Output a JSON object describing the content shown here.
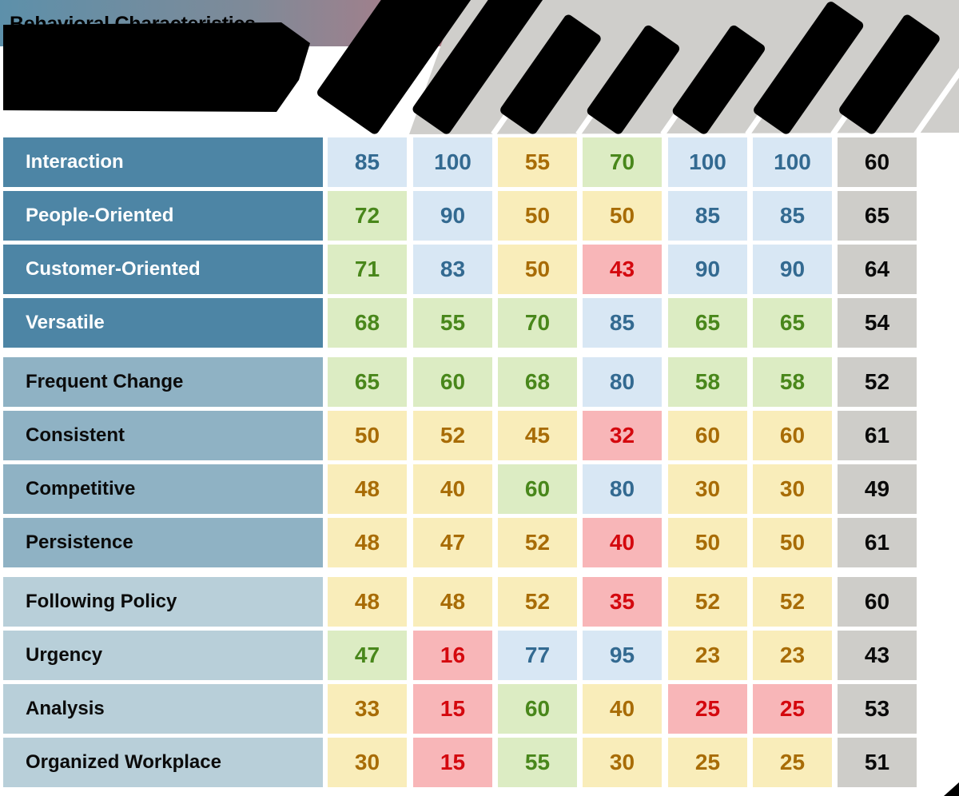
{
  "title": {
    "line1": "Behavioral Characteristics",
    "line2": "Behavioral Characteristics"
  },
  "header": {
    "column_labels_obscured": true,
    "column_labels": [
      "",
      "",
      "",
      "",
      "",
      "",
      ""
    ]
  },
  "colors": {
    "gradient_left": "#5d90aa",
    "gradient_right": "#b27a85",
    "header_gray": "#cfcecb",
    "label_dark": "#4d85a5",
    "label_mid": "#8fb2c4",
    "label_light": "#b8cfd9",
    "cell_blue_bg": "#d8e7f4",
    "cell_blue_fg": "#336a91",
    "cell_green_bg": "#dcecc3",
    "cell_green_fg": "#49871b",
    "cell_yellow_bg": "#f9edba",
    "cell_yellow_fg": "#a86c06",
    "cell_red_bg": "#f8b6b8",
    "cell_red_fg": "#d4080e",
    "cell_gray_bg": "#cecdc9",
    "cell_gray_fg": "#0a0a0a"
  },
  "table": {
    "rows": [
      {
        "label": "Interaction",
        "group": "dark",
        "cells": [
          {
            "v": "85",
            "c": "blue"
          },
          {
            "v": "100",
            "c": "blue"
          },
          {
            "v": "55",
            "c": "yellow"
          },
          {
            "v": "70",
            "c": "green"
          },
          {
            "v": "100",
            "c": "blue"
          },
          {
            "v": "100",
            "c": "blue"
          },
          {
            "v": "60",
            "c": "gray"
          }
        ]
      },
      {
        "label": "People-Oriented",
        "group": "dark",
        "cells": [
          {
            "v": "72",
            "c": "green"
          },
          {
            "v": "90",
            "c": "blue"
          },
          {
            "v": "50",
            "c": "yellow"
          },
          {
            "v": "50",
            "c": "yellow"
          },
          {
            "v": "85",
            "c": "blue"
          },
          {
            "v": "85",
            "c": "blue"
          },
          {
            "v": "65",
            "c": "gray"
          }
        ]
      },
      {
        "label": "Customer-Oriented",
        "group": "dark",
        "cells": [
          {
            "v": "71",
            "c": "green"
          },
          {
            "v": "83",
            "c": "blue"
          },
          {
            "v": "50",
            "c": "yellow"
          },
          {
            "v": "43",
            "c": "red"
          },
          {
            "v": "90",
            "c": "blue"
          },
          {
            "v": "90",
            "c": "blue"
          },
          {
            "v": "64",
            "c": "gray"
          }
        ]
      },
      {
        "label": "Versatile",
        "group": "dark",
        "cells": [
          {
            "v": "68",
            "c": "green"
          },
          {
            "v": "55",
            "c": "green"
          },
          {
            "v": "70",
            "c": "green"
          },
          {
            "v": "85",
            "c": "blue"
          },
          {
            "v": "65",
            "c": "green"
          },
          {
            "v": "65",
            "c": "green"
          },
          {
            "v": "54",
            "c": "gray"
          }
        ]
      },
      {
        "label": "Frequent Change",
        "group": "mid",
        "cells": [
          {
            "v": "65",
            "c": "green"
          },
          {
            "v": "60",
            "c": "green"
          },
          {
            "v": "68",
            "c": "green"
          },
          {
            "v": "80",
            "c": "blue"
          },
          {
            "v": "58",
            "c": "green"
          },
          {
            "v": "58",
            "c": "green"
          },
          {
            "v": "52",
            "c": "gray"
          }
        ]
      },
      {
        "label": "Consistent",
        "group": "mid",
        "cells": [
          {
            "v": "50",
            "c": "yellow"
          },
          {
            "v": "52",
            "c": "yellow"
          },
          {
            "v": "45",
            "c": "yellow"
          },
          {
            "v": "32",
            "c": "red"
          },
          {
            "v": "60",
            "c": "yellow"
          },
          {
            "v": "60",
            "c": "yellow"
          },
          {
            "v": "61",
            "c": "gray"
          }
        ]
      },
      {
        "label": "Competitive",
        "group": "mid",
        "cells": [
          {
            "v": "48",
            "c": "yellow"
          },
          {
            "v": "40",
            "c": "yellow"
          },
          {
            "v": "60",
            "c": "green"
          },
          {
            "v": "80",
            "c": "blue"
          },
          {
            "v": "30",
            "c": "yellow"
          },
          {
            "v": "30",
            "c": "yellow"
          },
          {
            "v": "49",
            "c": "gray"
          }
        ]
      },
      {
        "label": "Persistence",
        "group": "mid",
        "cells": [
          {
            "v": "48",
            "c": "yellow"
          },
          {
            "v": "47",
            "c": "yellow"
          },
          {
            "v": "52",
            "c": "yellow"
          },
          {
            "v": "40",
            "c": "red"
          },
          {
            "v": "50",
            "c": "yellow"
          },
          {
            "v": "50",
            "c": "yellow"
          },
          {
            "v": "61",
            "c": "gray"
          }
        ]
      },
      {
        "label": "Following Policy",
        "group": "light",
        "cells": [
          {
            "v": "48",
            "c": "yellow"
          },
          {
            "v": "48",
            "c": "yellow"
          },
          {
            "v": "52",
            "c": "yellow"
          },
          {
            "v": "35",
            "c": "red"
          },
          {
            "v": "52",
            "c": "yellow"
          },
          {
            "v": "52",
            "c": "yellow"
          },
          {
            "v": "60",
            "c": "gray"
          }
        ]
      },
      {
        "label": "Urgency",
        "group": "light",
        "cells": [
          {
            "v": "47",
            "c": "green"
          },
          {
            "v": "16",
            "c": "red"
          },
          {
            "v": "77",
            "c": "blue"
          },
          {
            "v": "95",
            "c": "blue"
          },
          {
            "v": "23",
            "c": "yellow"
          },
          {
            "v": "23",
            "c": "yellow"
          },
          {
            "v": "43",
            "c": "gray"
          }
        ]
      },
      {
        "label": "Analysis",
        "group": "light",
        "cells": [
          {
            "v": "33",
            "c": "yellow"
          },
          {
            "v": "15",
            "c": "red"
          },
          {
            "v": "60",
            "c": "green"
          },
          {
            "v": "40",
            "c": "yellow"
          },
          {
            "v": "25",
            "c": "red"
          },
          {
            "v": "25",
            "c": "red"
          },
          {
            "v": "53",
            "c": "gray"
          }
        ]
      },
      {
        "label": "Organized Workplace",
        "group": "light",
        "cells": [
          {
            "v": "30",
            "c": "yellow"
          },
          {
            "v": "15",
            "c": "red"
          },
          {
            "v": "55",
            "c": "green"
          },
          {
            "v": "30",
            "c": "yellow"
          },
          {
            "v": "25",
            "c": "yellow"
          },
          {
            "v": "25",
            "c": "yellow"
          },
          {
            "v": "51",
            "c": "gray"
          }
        ]
      }
    ]
  },
  "chart_data": {
    "type": "heatmap",
    "title": "Behavioral Characteristics",
    "row_labels": [
      "Interaction",
      "People-Oriented",
      "Customer-Oriented",
      "Versatile",
      "Frequent Change",
      "Consistent",
      "Competitive",
      "Persistence",
      "Following Policy",
      "Urgency",
      "Analysis",
      "Organized Workplace"
    ],
    "col_labels": [
      "",
      "",
      "",
      "",
      "",
      "",
      ""
    ],
    "values": [
      [
        85,
        100,
        55,
        70,
        100,
        100,
        60
      ],
      [
        72,
        90,
        50,
        50,
        85,
        85,
        65
      ],
      [
        71,
        83,
        50,
        43,
        90,
        90,
        64
      ],
      [
        68,
        55,
        70,
        85,
        65,
        65,
        54
      ],
      [
        65,
        60,
        68,
        80,
        58,
        58,
        52
      ],
      [
        50,
        52,
        45,
        32,
        60,
        60,
        61
      ],
      [
        48,
        40,
        60,
        80,
        30,
        30,
        49
      ],
      [
        48,
        47,
        52,
        40,
        50,
        50,
        61
      ],
      [
        48,
        48,
        52,
        35,
        52,
        52,
        60
      ],
      [
        47,
        16,
        77,
        95,
        23,
        23,
        43
      ],
      [
        33,
        15,
        60,
        40,
        25,
        25,
        53
      ],
      [
        30,
        15,
        55,
        30,
        25,
        25,
        51
      ]
    ],
    "cell_categories": [
      [
        "blue",
        "blue",
        "yellow",
        "green",
        "blue",
        "blue",
        "gray"
      ],
      [
        "green",
        "blue",
        "yellow",
        "yellow",
        "blue",
        "blue",
        "gray"
      ],
      [
        "green",
        "blue",
        "yellow",
        "red",
        "blue",
        "blue",
        "gray"
      ],
      [
        "green",
        "green",
        "green",
        "blue",
        "green",
        "green",
        "gray"
      ],
      [
        "green",
        "green",
        "green",
        "blue",
        "green",
        "green",
        "gray"
      ],
      [
        "yellow",
        "yellow",
        "yellow",
        "red",
        "yellow",
        "yellow",
        "gray"
      ],
      [
        "yellow",
        "yellow",
        "green",
        "blue",
        "yellow",
        "yellow",
        "gray"
      ],
      [
        "yellow",
        "yellow",
        "yellow",
        "red",
        "yellow",
        "yellow",
        "gray"
      ],
      [
        "yellow",
        "yellow",
        "yellow",
        "red",
        "yellow",
        "yellow",
        "gray"
      ],
      [
        "green",
        "red",
        "blue",
        "blue",
        "yellow",
        "yellow",
        "gray"
      ],
      [
        "yellow",
        "red",
        "green",
        "yellow",
        "red",
        "red",
        "gray"
      ],
      [
        "yellow",
        "red",
        "green",
        "yellow",
        "yellow",
        "yellow",
        "gray"
      ]
    ],
    "legend_position": "none",
    "grid": false
  }
}
